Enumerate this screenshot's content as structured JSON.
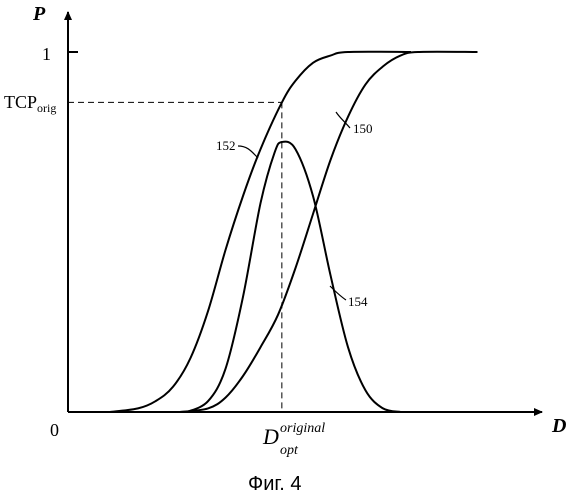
{
  "chart_data": {
    "type": "line",
    "title": "",
    "caption": "Фиг. 4",
    "xlabel": "D",
    "ylabel": "P",
    "xlim": [
      0,
      10
    ],
    "ylim": [
      0,
      1
    ],
    "grid": false,
    "legend": "none",
    "x_ticks": [
      {
        "x": 0,
        "label": "0"
      }
    ],
    "y_ticks": [
      {
        "y": 1,
        "label": "1"
      }
    ],
    "reference": {
      "tcp_label": {
        "main": "TCP",
        "sub": "orig"
      },
      "dopt_label": {
        "main": "D",
        "sub": "opt",
        "sup": "original"
      },
      "x": 6.11,
      "y": 0.86
    },
    "series": [
      {
        "name": "152",
        "points": [
          [
            1.2,
            0.0
          ],
          [
            2.0,
            0.01
          ],
          [
            2.5,
            0.03
          ],
          [
            3.0,
            0.07
          ],
          [
            3.5,
            0.15
          ],
          [
            4.0,
            0.28
          ],
          [
            4.5,
            0.45
          ],
          [
            5.0,
            0.6
          ],
          [
            5.5,
            0.73
          ],
          [
            6.11,
            0.86
          ],
          [
            6.5,
            0.92
          ],
          [
            7.0,
            0.97
          ],
          [
            7.5,
            0.99
          ],
          [
            8.0,
            1.0
          ],
          [
            9.8,
            1.0
          ]
        ]
      },
      {
        "name": "150",
        "points": [
          [
            3.2,
            0.0
          ],
          [
            4.0,
            0.01
          ],
          [
            4.5,
            0.04
          ],
          [
            5.0,
            0.1
          ],
          [
            5.5,
            0.18
          ],
          [
            6.0,
            0.27
          ],
          [
            6.5,
            0.4
          ],
          [
            7.0,
            0.55
          ],
          [
            7.5,
            0.7
          ],
          [
            8.0,
            0.82
          ],
          [
            8.5,
            0.91
          ],
          [
            9.0,
            0.96
          ],
          [
            9.5,
            0.99
          ],
          [
            10.0,
            1.0
          ],
          [
            11.7,
            1.0
          ]
        ]
      },
      {
        "name": "154",
        "points": [
          [
            3.4,
            0.0
          ],
          [
            4.0,
            0.03
          ],
          [
            4.5,
            0.12
          ],
          [
            5.0,
            0.32
          ],
          [
            5.5,
            0.58
          ],
          [
            5.9,
            0.72
          ],
          [
            6.11,
            0.75
          ],
          [
            6.5,
            0.73
          ],
          [
            7.0,
            0.6
          ],
          [
            7.5,
            0.38
          ],
          [
            8.0,
            0.18
          ],
          [
            8.5,
            0.06
          ],
          [
            9.0,
            0.01
          ],
          [
            9.5,
            0.0
          ]
        ]
      }
    ],
    "labels": {
      "c152": "152",
      "c150": "150",
      "c154": "154"
    }
  }
}
